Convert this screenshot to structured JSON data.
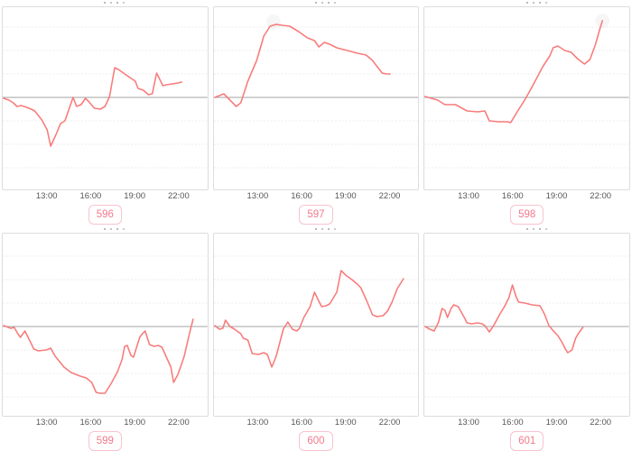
{
  "colors": {
    "line": "#f87c7c",
    "baseline": "#a3a3a3",
    "grid": "#ececec",
    "panel_border": "#dddddd",
    "tick_text": "#565656",
    "badge_text": "#f2798b",
    "badge_border": "#f8c3cd",
    "background": "#ffffff"
  },
  "chart_data": {
    "type": "line",
    "note": "Grid of 6 small time-series line charts. X axis is time of day; Y axis is unlabeled, values are offsets relative to the solid gray baseline (gridline spacing = 26 units). Chart titles are clipped off the top edge.",
    "x_axis": {
      "tick_labels": [
        "13:00",
        "16:00",
        "19:00",
        "22:00"
      ],
      "tick_hours": [
        13,
        16,
        19,
        22
      ],
      "range_hours": [
        10.0,
        23.2
      ],
      "grid": "horizontal dashed lines, solid gray zero baseline"
    },
    "y_axis": {
      "labels_visible": false,
      "baseline": 0,
      "approx_range": [
        -100,
        100
      ]
    },
    "charts": [
      {
        "id": "596",
        "badge_label": "596",
        "x_tick_labels": [
          "13:00",
          "16:00",
          "19:00",
          "22:00"
        ],
        "points": [
          [
            10.0,
            -1
          ],
          [
            10.37,
            -3
          ],
          [
            10.67,
            -6
          ],
          [
            10.92,
            -10
          ],
          [
            11.22,
            -9
          ],
          [
            11.59,
            -11
          ],
          [
            11.9,
            -13
          ],
          [
            12.14,
            -15
          ],
          [
            12.63,
            -25
          ],
          [
            13.0,
            -36
          ],
          [
            13.24,
            -54
          ],
          [
            13.61,
            -41
          ],
          [
            13.92,
            -29
          ],
          [
            14.22,
            -26
          ],
          [
            14.78,
            0
          ],
          [
            15.02,
            -10
          ],
          [
            15.33,
            -8
          ],
          [
            15.63,
            -1
          ],
          [
            15.82,
            -4
          ],
          [
            16.25,
            -12
          ],
          [
            16.67,
            -13
          ],
          [
            16.98,
            -10
          ],
          [
            17.29,
            1
          ],
          [
            17.65,
            33
          ],
          [
            17.9,
            31
          ],
          [
            18.51,
            24
          ],
          [
            19.06,
            18
          ],
          [
            19.25,
            10
          ],
          [
            19.61,
            8
          ],
          [
            19.98,
            3
          ],
          [
            20.23,
            4
          ],
          [
            20.53,
            27
          ],
          [
            20.96,
            13
          ],
          [
            21.21,
            14
          ],
          [
            22.0,
            16
          ],
          [
            22.25,
            17
          ]
        ]
      },
      {
        "id": "597",
        "badge_label": "597",
        "x_tick_labels": [
          "13:00",
          "16:00",
          "19:00",
          "22:00"
        ],
        "halo_point": [
          14.05,
          84
        ],
        "points": [
          [
            10.0,
            0
          ],
          [
            10.61,
            4
          ],
          [
            10.98,
            -2
          ],
          [
            11.47,
            -10
          ],
          [
            11.78,
            -6
          ],
          [
            12.27,
            18
          ],
          [
            12.88,
            41
          ],
          [
            13.37,
            68
          ],
          [
            13.8,
            79
          ],
          [
            14.22,
            81
          ],
          [
            14.59,
            80
          ],
          [
            15.14,
            79
          ],
          [
            15.76,
            73
          ],
          [
            16.37,
            66
          ],
          [
            16.86,
            63
          ],
          [
            17.16,
            56
          ],
          [
            17.53,
            61
          ],
          [
            17.9,
            59
          ],
          [
            18.39,
            55
          ],
          [
            19.12,
            52
          ],
          [
            19.8,
            49
          ],
          [
            20.41,
            47
          ],
          [
            20.84,
            41
          ],
          [
            21.27,
            32
          ],
          [
            21.51,
            27
          ],
          [
            21.82,
            26
          ],
          [
            22.06,
            26
          ]
        ]
      },
      {
        "id": "598",
        "badge_label": "598",
        "x_tick_labels": [
          "13:00",
          "16:00",
          "19:00",
          "22:00"
        ],
        "halo_point": [
          22.19,
          85
        ],
        "points": [
          [
            10.0,
            1
          ],
          [
            10.86,
            -3
          ],
          [
            11.35,
            -8
          ],
          [
            12.08,
            -8
          ],
          [
            12.88,
            -15
          ],
          [
            13.61,
            -16
          ],
          [
            14.1,
            -15
          ],
          [
            14.41,
            -26
          ],
          [
            15.02,
            -27
          ],
          [
            15.63,
            -27
          ],
          [
            15.88,
            -28
          ],
          [
            16.37,
            -15
          ],
          [
            16.8,
            -4
          ],
          [
            17.16,
            6
          ],
          [
            17.59,
            19
          ],
          [
            18.08,
            34
          ],
          [
            18.57,
            46
          ],
          [
            18.8,
            55
          ],
          [
            19.12,
            57
          ],
          [
            19.61,
            52
          ],
          [
            20.04,
            50
          ],
          [
            20.47,
            43
          ],
          [
            20.96,
            37
          ],
          [
            21.33,
            42
          ],
          [
            21.7,
            58
          ],
          [
            22.0,
            75
          ],
          [
            22.19,
            85
          ]
        ]
      },
      {
        "id": "599",
        "badge_label": "599",
        "x_tick_labels": [
          "13:00",
          "16:00",
          "19:00",
          "22:00"
        ],
        "points": [
          [
            10.0,
            1
          ],
          [
            10.49,
            -2
          ],
          [
            10.73,
            -1
          ],
          [
            10.98,
            -8
          ],
          [
            11.16,
            -12
          ],
          [
            11.47,
            -5
          ],
          [
            11.78,
            -15
          ],
          [
            12.08,
            -25
          ],
          [
            12.39,
            -27
          ],
          [
            12.94,
            -26
          ],
          [
            13.24,
            -24
          ],
          [
            13.55,
            -33
          ],
          [
            14.16,
            -45
          ],
          [
            14.65,
            -51
          ],
          [
            15.27,
            -55
          ],
          [
            15.69,
            -57
          ],
          [
            16.06,
            -62
          ],
          [
            16.37,
            -73
          ],
          [
            16.61,
            -74
          ],
          [
            16.98,
            -74
          ],
          [
            17.41,
            -63
          ],
          [
            17.84,
            -50
          ],
          [
            18.14,
            -37
          ],
          [
            18.33,
            -22
          ],
          [
            18.51,
            -21
          ],
          [
            18.76,
            -32
          ],
          [
            18.94,
            -34
          ],
          [
            19.37,
            -12
          ],
          [
            19.55,
            -8
          ],
          [
            19.74,
            -5
          ],
          [
            20.04,
            -20
          ],
          [
            20.35,
            -22
          ],
          [
            20.65,
            -21
          ],
          [
            20.9,
            -23
          ],
          [
            21.51,
            -45
          ],
          [
            21.7,
            -62
          ],
          [
            22.0,
            -53
          ],
          [
            22.43,
            -33
          ],
          [
            22.8,
            -7
          ],
          [
            23.04,
            8
          ]
        ]
      },
      {
        "id": "600",
        "badge_label": "600",
        "x_tick_labels": [
          "13:00",
          "16:00",
          "19:00",
          "22:00"
        ],
        "points": [
          [
            10.0,
            1
          ],
          [
            10.31,
            -3
          ],
          [
            10.55,
            -2
          ],
          [
            10.73,
            7
          ],
          [
            11.04,
            0
          ],
          [
            11.35,
            -3
          ],
          [
            11.78,
            -8
          ],
          [
            11.96,
            -13
          ],
          [
            12.27,
            -15
          ],
          [
            12.57,
            -30
          ],
          [
            13.0,
            -31
          ],
          [
            13.37,
            -29
          ],
          [
            13.61,
            -31
          ],
          [
            13.92,
            -45
          ],
          [
            14.22,
            -33
          ],
          [
            14.71,
            -3
          ],
          [
            15.02,
            5
          ],
          [
            15.33,
            -3
          ],
          [
            15.63,
            -5
          ],
          [
            15.82,
            -2
          ],
          [
            16.12,
            10
          ],
          [
            16.55,
            22
          ],
          [
            16.86,
            38
          ],
          [
            17.16,
            28
          ],
          [
            17.35,
            22
          ],
          [
            17.65,
            23
          ],
          [
            17.9,
            25
          ],
          [
            18.39,
            38
          ],
          [
            18.69,
            62
          ],
          [
            19.0,
            57
          ],
          [
            19.43,
            52
          ],
          [
            19.8,
            47
          ],
          [
            20.04,
            43
          ],
          [
            20.41,
            30
          ],
          [
            20.84,
            13
          ],
          [
            21.14,
            11
          ],
          [
            21.57,
            12
          ],
          [
            21.88,
            17
          ],
          [
            22.19,
            27
          ],
          [
            22.55,
            42
          ],
          [
            22.98,
            53
          ]
        ]
      },
      {
        "id": "601",
        "badge_label": "601",
        "x_tick_labels": [
          "13:00",
          "16:00",
          "19:00",
          "22:00"
        ],
        "points": [
          [
            10.0,
            0
          ],
          [
            10.31,
            -3
          ],
          [
            10.61,
            -5
          ],
          [
            10.92,
            5
          ],
          [
            11.16,
            20
          ],
          [
            11.35,
            18
          ],
          [
            11.53,
            10
          ],
          [
            11.78,
            20
          ],
          [
            11.96,
            24
          ],
          [
            12.27,
            22
          ],
          [
            12.69,
            10
          ],
          [
            12.88,
            4
          ],
          [
            13.18,
            3
          ],
          [
            13.61,
            4
          ],
          [
            13.92,
            3
          ],
          [
            14.1,
            1
          ],
          [
            14.41,
            -6
          ],
          [
            14.71,
            1
          ],
          [
            15.14,
            14
          ],
          [
            15.45,
            22
          ],
          [
            15.76,
            32
          ],
          [
            16.0,
            46
          ],
          [
            16.25,
            33
          ],
          [
            16.43,
            27
          ],
          [
            16.86,
            26
          ],
          [
            17.35,
            24
          ],
          [
            17.9,
            23
          ],
          [
            18.2,
            14
          ],
          [
            18.51,
            1
          ],
          [
            18.82,
            -5
          ],
          [
            19.12,
            -10
          ],
          [
            19.43,
            -18
          ],
          [
            19.61,
            -24
          ],
          [
            19.8,
            -29
          ],
          [
            20.1,
            -26
          ],
          [
            20.35,
            -13
          ],
          [
            20.53,
            -8
          ],
          [
            20.84,
            -1
          ]
        ]
      }
    ]
  }
}
